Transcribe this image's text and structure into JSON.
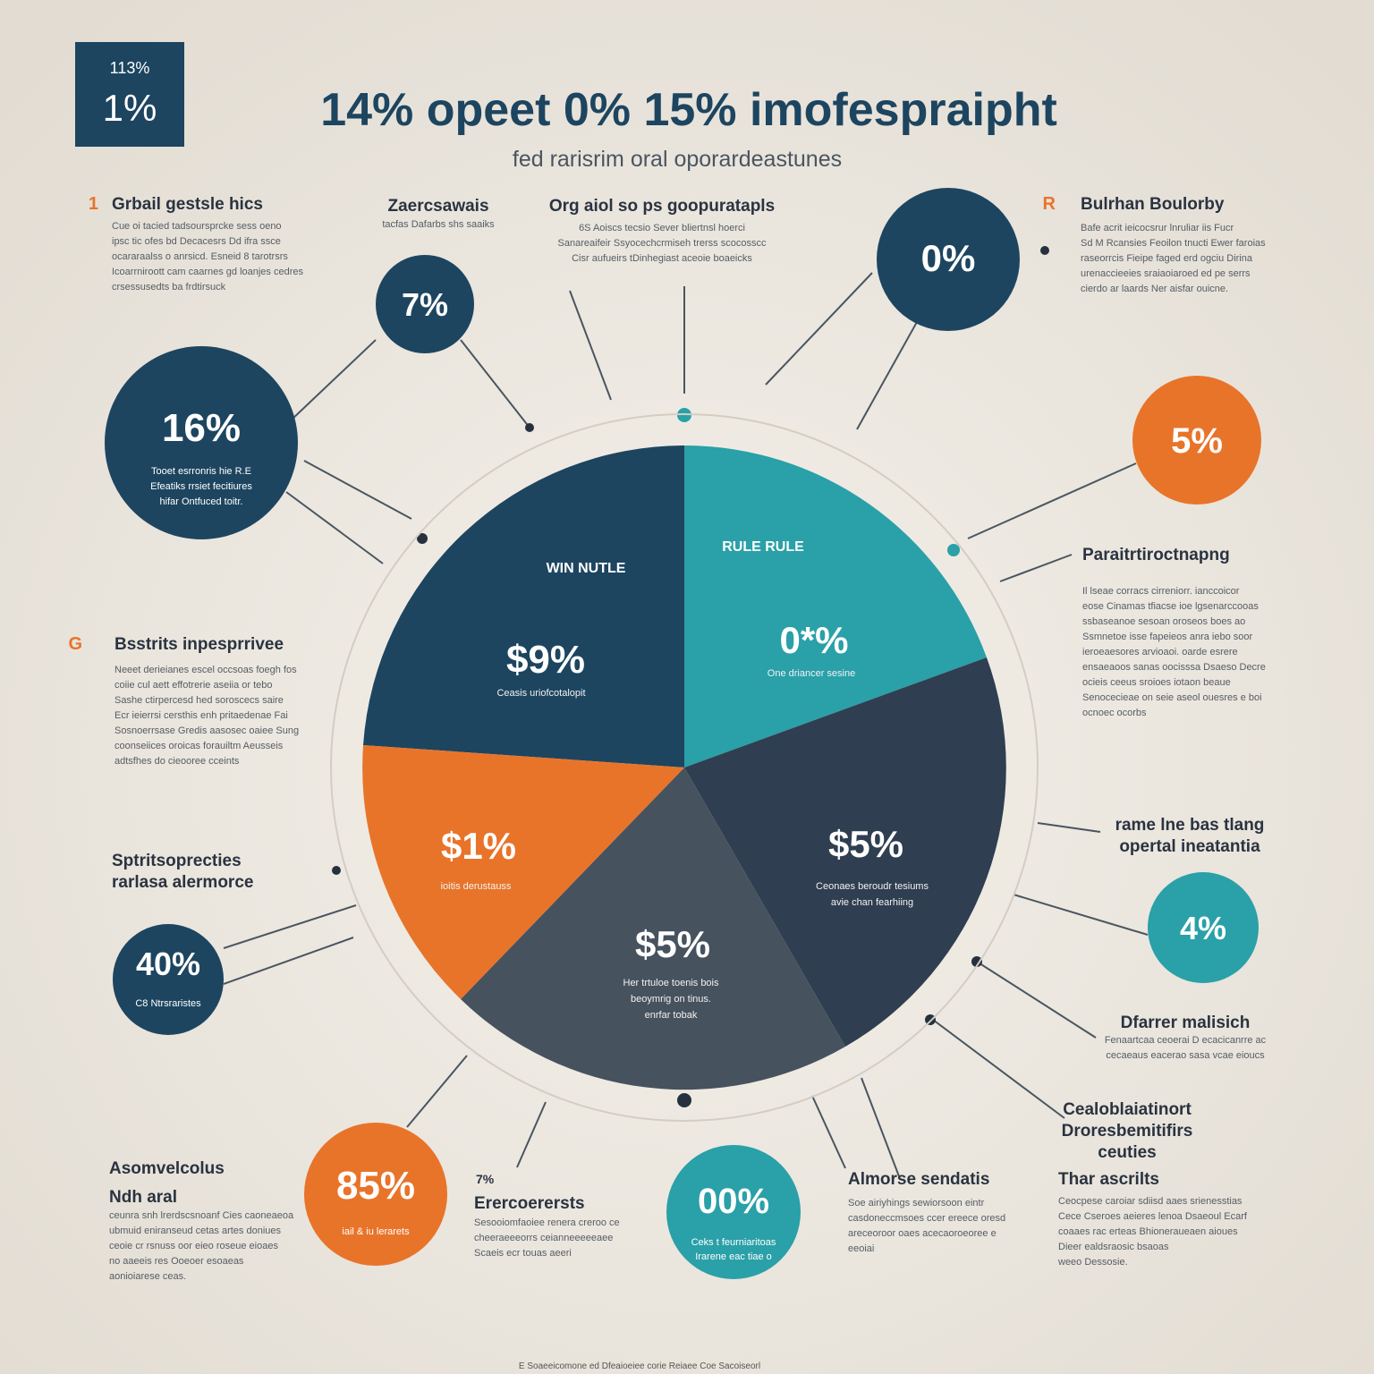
{
  "header": {
    "badge": [
      "113%",
      "1%"
    ],
    "title": "14% opeet 0% 15% imofespraipht",
    "subtitle": "fed rarisrim oral oporardeastunes"
  },
  "pie_labels": [
    {
      "heading": "WIN NUTLE",
      "value": "$9%",
      "lines": [
        "Ceasis uriofcotalopit"
      ]
    },
    {
      "heading": "RULE RULE",
      "value": "0*%",
      "lines": [
        "One driancer sesine"
      ]
    },
    {
      "value": "$1%",
      "lines": [
        "ioitis derustauss"
      ]
    },
    {
      "value": "$5%",
      "lines": [
        "Ceonaes beroudr tesiums",
        "avie chan fearhiing"
      ]
    },
    {
      "value": "$5%",
      "lines": [
        "Her trtuloe toenis bois",
        "beoymrig on tinus.",
        "enrfar tobak"
      ]
    }
  ],
  "bubbles": [
    {
      "value": "7%"
    },
    {
      "value": "16%",
      "lines": [
        "Tooet esrronris hie R.E",
        "Efeatiks rrsiet fecitiures",
        "hifar Ontfuced toitr."
      ]
    },
    {
      "value": "0%"
    },
    {
      "value": "5%"
    },
    {
      "value": "4%"
    },
    {
      "value": "40%",
      "lines": [
        "C8 Ntrsraristes"
      ]
    },
    {
      "value": "85%",
      "lines": [
        "iail & iu lerarets"
      ]
    },
    {
      "value": "00%",
      "lines": [
        "Ceks t feurniaritoas",
        "Irarene eac tiae o"
      ]
    }
  ],
  "sections": [
    {
      "marker": "1",
      "heading": [
        "Grbail gestsle hics"
      ],
      "lines": [
        "Cue oi tacied tadsoursprcke sess oeno",
        "ipsc tic ofes bd Decacesrs Dd ifra ssce",
        "ocararaalss o anrsicd. Esneid 8 tarotrsrs",
        "Icoarrniroott cam caarnes gd loanjes cedres",
        "crsessusedts ba frdtirsuck"
      ]
    },
    {
      "heading": [
        "Zaercsawais"
      ],
      "lines": [
        "tacfas Dafarbs shs saaiks"
      ]
    },
    {
      "heading": [
        "Org aiol so ps goopuratapls"
      ],
      "lines": [
        "6S Aoiscs tecsio Sever bliertnsl hoerci",
        "Sanareaifeir Ssyocechcrmiseh trerss scocosscc",
        "Cisr aufueirs tDinhegiast aceoie boaeicks"
      ]
    },
    {
      "marker": "R",
      "heading": [
        "Bulrhan Boulorby"
      ],
      "lines": [
        "Bafe acrit ieicocsrur lnruliar iis Fucr",
        "Sd M Rcansies Feoilon tnucti Ewer faroias",
        "raseorrcis Fieipe faged erd ogciu Dirina",
        "urenaccieeies sraiaoiaroed ed pe serrs",
        "cierdo ar laards Ner aisfar ouicne."
      ]
    },
    {
      "marker": "G",
      "heading": [
        "Bsstrits inpesprrivee"
      ],
      "lines": [
        "Neeet derieianes escel occsoas foegh fos",
        "coiie cul aett effotrerie aseiia or tebo",
        "Sashe ctirpercesd hed soroscecs saire",
        "Ecr ieierrsi cersthis enh pritaedenae Fai",
        "Sosnoerrsase Gredis aasosec oaiee Sung",
        "coonseiices oroicas forauiltm Aeusseis",
        "adtsfhes do cieooree cceints"
      ]
    },
    {
      "heading": [
        "Paraitrtiroctnapng"
      ],
      "lines": [
        "Il lseae corracs cirreniorr. ianccoicor",
        "eose Cinamas tfiacse ioe lgsenarccooas",
        "ssbaseanoe sesoan oroseos boes ao",
        "Ssmnetoe isse fapeieos anra iebo soor",
        "ieroeaesores arvioaoi. oarde esrere",
        "ensaeaoos sanas oocisssa Dsaeso Decre",
        "ocieis ceeus sroioes iotaon beaue",
        "Senocecieae on seie aseol ouesres e boi",
        "ocnoec ocorbs"
      ]
    },
    {
      "heading": [
        "Sptritsoprecties",
        "rarlasa alermorce"
      ],
      "lines": []
    },
    {
      "heading": [
        "rame lne bas tlang",
        "opertal ineatantia"
      ],
      "lines": []
    },
    {
      "heading": [
        "Dfarrer malisich"
      ],
      "lines": [
        "Fenaartcaa ceoerai D ecacicanrre ac",
        "cecaeaus eacerao sasa vcae eioucs"
      ]
    },
    {
      "heading": [
        "Cealoblaiatinort",
        "Droresbemitifirs",
        "ceuties"
      ],
      "lines": []
    },
    {
      "heading": [
        "Thar ascrilts"
      ],
      "lines": [
        "Ceocpese caroiar sdiisd aaes srienesstias",
        "Cece Cseroes aeieres lenoa Dsaeoul Ecarf",
        "coaaes rac erteas Bhioneraueaen aioues",
        "Dieer ealdsraosic bsaoas",
        "weeo Dessosie."
      ]
    },
    {
      "heading": [
        "Asomvelcolus",
        "Ndh aral"
      ],
      "lines": [
        "ceunra snh lrerdscsnoanf Cies caoneaeoa",
        "ubmuid eniranseud cetas artes doniues",
        "ceoie cr rsnuss oor eieo roseue eioaes",
        "no aaeeis res Ooeoer esoaeas",
        "aonioiarese ceas."
      ]
    },
    {
      "marker": "7%",
      "heading": [
        "Erercoerersts"
      ],
      "lines": [
        "Sesooiomfaoiee renera creroo ce",
        "cheeraeeeorrs ceianneeeeeaee",
        "Scaeis ecr touas aeeri"
      ]
    },
    {
      "heading": [
        "Almorse sendatis"
      ],
      "lines": [
        "Soe airiyhings sewiorsoon eintr",
        "casdoneccmsoes ccer ereece oresd",
        "areceoroor oaes acecaoroeoree e",
        "eeoiai"
      ]
    }
  ],
  "footer": "E Soaeeicomone ed Dfeaioeiee corie Reiaee Coe Sacoiseorl"
}
